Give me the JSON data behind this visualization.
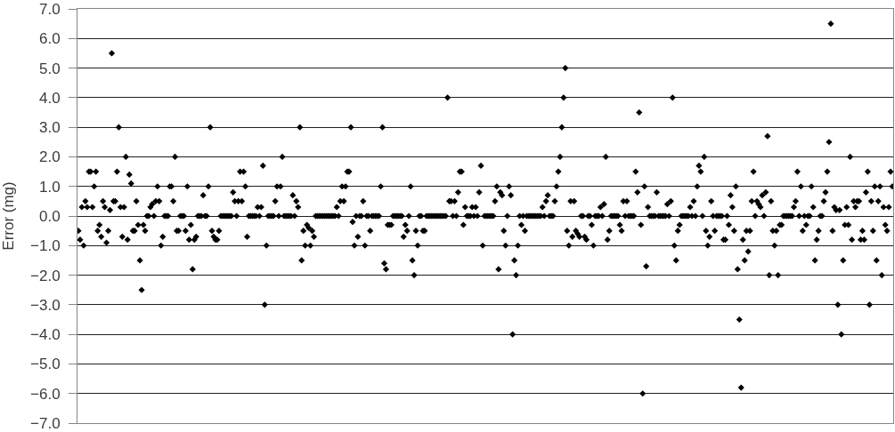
{
  "chart_data": {
    "type": "scatter",
    "ylabel": "Error (mg)",
    "color": "#000000",
    "marker": "diamond",
    "grid": "y",
    "ylim": [
      -7,
      7
    ],
    "yticks": [
      {
        "value": 7,
        "label": "7.0"
      },
      {
        "value": 6,
        "label": "6.0"
      },
      {
        "value": 5,
        "label": "5.0"
      },
      {
        "value": 4,
        "label": "4.0"
      },
      {
        "value": 3,
        "label": "3.0"
      },
      {
        "value": 2,
        "label": "2.0"
      },
      {
        "value": 1,
        "label": "1.0"
      },
      {
        "value": 0,
        "label": "0.0"
      },
      {
        "value": -1,
        "label": "−1.0"
      },
      {
        "value": -2,
        "label": "−2.0"
      },
      {
        "value": -3,
        "label": "−3.0"
      },
      {
        "value": -4,
        "label": "−4.0"
      },
      {
        "value": -5,
        "label": "−5.0"
      },
      {
        "value": -6,
        "label": "−6.0"
      },
      {
        "value": -7,
        "label": "−7.0"
      }
    ],
    "categories": [
      null,
      null,
      null,
      null,
      null,
      null,
      null,
      null,
      null,
      null,
      null,
      null,
      null,
      null,
      null,
      null,
      null,
      null,
      null,
      null,
      null,
      null,
      null,
      null,
      null,
      null,
      null,
      null,
      null,
      null,
      null,
      null,
      null,
      null,
      null,
      null,
      null,
      null,
      null,
      null,
      null,
      null,
      null,
      null,
      null,
      null,
      null,
      null,
      null,
      null,
      null,
      null,
      null,
      null,
      null,
      null,
      null,
      null,
      null,
      null,
      null,
      null,
      null,
      null,
      null,
      null,
      null,
      null,
      null,
      null,
      null,
      null,
      null,
      null,
      null,
      null,
      null,
      null,
      null,
      null,
      null,
      null,
      null,
      null,
      null,
      null,
      null,
      null,
      null,
      null,
      null,
      null,
      null,
      null,
      null,
      null,
      null,
      null,
      null,
      null,
      null,
      null,
      null,
      null,
      null,
      null,
      null,
      null,
      null,
      null,
      null,
      null,
      null,
      null,
      null,
      null,
      null,
      null,
      null,
      null,
      null,
      null,
      null,
      null,
      null,
      null,
      null,
      null,
      null,
      null,
      null,
      null,
      null,
      null,
      null,
      null,
      null,
      null,
      null,
      null,
      null,
      null,
      null,
      null,
      null,
      null,
      null,
      null,
      null,
      null,
      null,
      null,
      null,
      null,
      null,
      null,
      null,
      null,
      null,
      null,
      null,
      null,
      null,
      null,
      null,
      null,
      null,
      null,
      null,
      null,
      null,
      null,
      null,
      null,
      null,
      null,
      null,
      null,
      null,
      null,
      null,
      null,
      null,
      null,
      null,
      null,
      null,
      null,
      null,
      null,
      null,
      null,
      null,
      null,
      null,
      null,
      null,
      null,
      null,
      null,
      null,
      null,
      null,
      null,
      null,
      null,
      null,
      null,
      null,
      null,
      null,
      null,
      null,
      null,
      null,
      null,
      null,
      null,
      null,
      null,
      null,
      null,
      null,
      null,
      null,
      null,
      null,
      null,
      null,
      null,
      null,
      null,
      null,
      null,
      null,
      null,
      null,
      null,
      null,
      null,
      null,
      null,
      null,
      null,
      null,
      null,
      null,
      null,
      null,
      null,
      null,
      null,
      null,
      null,
      null,
      null,
      null,
      null,
      null,
      null,
      null,
      null,
      null,
      null,
      null,
      null,
      null,
      null,
      null,
      null,
      null,
      null,
      null,
      null,
      null,
      null,
      null,
      null,
      null,
      null,
      null,
      null,
      null,
      null,
      null,
      null,
      null,
      null,
      null,
      null,
      null,
      null,
      null,
      null,
      null,
      null,
      null,
      null,
      null,
      null,
      null,
      null,
      null,
      null,
      null,
      null,
      null,
      null,
      null,
      null,
      null,
      null,
      null,
      null,
      null,
      null,
      null,
      null,
      null,
      null,
      null,
      null,
      null,
      null,
      null,
      null,
      null,
      null,
      null,
      null,
      null,
      null,
      null,
      null,
      null,
      null,
      null,
      null,
      null,
      null,
      null,
      null,
      null,
      null,
      null,
      null,
      null,
      null,
      null,
      null,
      null,
      null,
      null,
      null,
      null,
      null,
      null,
      null,
      null,
      null,
      null,
      null,
      null,
      null,
      null,
      null,
      null,
      null,
      null,
      null,
      null,
      null,
      null,
      null,
      null,
      null,
      null,
      null,
      null,
      null,
      null,
      null,
      null,
      null,
      null,
      null,
      null,
      null,
      null,
      null,
      null,
      null,
      null,
      null,
      null,
      null,
      null,
      null,
      null,
      null,
      null,
      null,
      null,
      null,
      null,
      null,
      null,
      null,
      null,
      null,
      null,
      null,
      null,
      null,
      null,
      null,
      null,
      null,
      null,
      null,
      null,
      null,
      null,
      null,
      null,
      null,
      null,
      null,
      null,
      null,
      null,
      null,
      null,
      null,
      null,
      null,
      null,
      null,
      null,
      null,
      null,
      null,
      null,
      null,
      null,
      null,
      null,
      null,
      null,
      null,
      null,
      null,
      null,
      null,
      null,
      null,
      null,
      null,
      null,
      null,
      null,
      null,
      null,
      null
    ],
    "values": [
      -0.5,
      -0.8,
      0.3,
      -1.0,
      0.5,
      0.3,
      1.5,
      1.5,
      0.3,
      1.0,
      1.5,
      -0.5,
      -0.3,
      -0.7,
      0.5,
      0.3,
      -0.9,
      -0.5,
      0.2,
      5.5,
      0.5,
      0.5,
      1.5,
      3.0,
      0.3,
      -0.7,
      0.3,
      2.0,
      -0.8,
      1.4,
      1.1,
      -0.5,
      -0.5,
      0.5,
      -0.3,
      -1.5,
      -2.5,
      -0.3,
      -0.5,
      0,
      0,
      0.3,
      0.4,
      0,
      0.5,
      1.0,
      0.5,
      -1.0,
      -0.7,
      0,
      0,
      0,
      1.0,
      1.0,
      0.5,
      2.0,
      -0.5,
      -0.5,
      0,
      0,
      0,
      -0.5,
      1.0,
      -0.8,
      -0.3,
      -1.8,
      -0.8,
      -0.7,
      0,
      0,
      0,
      0.7,
      0,
      0,
      1.0,
      3.0,
      -0.5,
      -0.7,
      -0.8,
      -0.8,
      -0.5,
      0,
      0,
      0,
      0,
      0,
      0,
      0,
      0.8,
      0.5,
      0,
      0.5,
      1.5,
      0.5,
      1.5,
      1.0,
      -0.7,
      0,
      0,
      0,
      0,
      0,
      0.3,
      0,
      0.3,
      1.7,
      -3.0,
      -1.0,
      0,
      0,
      0,
      0,
      0.5,
      1.0,
      0,
      1.0,
      2.0,
      0,
      0,
      0,
      0,
      0,
      0.7,
      0,
      0.5,
      0.3,
      3.0,
      -1.5,
      -0.5,
      -1.0,
      -0.3,
      -0.4,
      -1.0,
      -0.5,
      -0.7,
      0,
      0,
      0,
      0,
      0,
      0,
      0,
      0,
      0,
      0,
      0,
      0,
      0.3,
      0,
      0.5,
      1.0,
      0.5,
      1.0,
      1.5,
      1.5,
      3.0,
      -0.2,
      -1.0,
      0,
      -0.7,
      0,
      0,
      0.5,
      -1.0,
      0,
      0,
      -0.5,
      0,
      0,
      0,
      0,
      0,
      1.0,
      3.0,
      -1.6,
      -1.8,
      -0.3,
      -0.3,
      -0.3,
      0,
      0,
      0,
      0,
      0,
      0,
      -0.7,
      -0.3,
      -0.5,
      0,
      1.0,
      -1.5,
      -2.0,
      -0.5,
      -1.0,
      0,
      0,
      -0.5,
      -0.5,
      0,
      0,
      0,
      0,
      0,
      0,
      0,
      0,
      0,
      0,
      0,
      0,
      4.0,
      0.5,
      0.5,
      0,
      0.5,
      0,
      0.8,
      1.5,
      1.5,
      -0.3,
      0.3,
      0,
      0,
      0,
      0.3,
      0,
      0.3,
      0,
      0.8,
      1.7,
      -1.0,
      0,
      0,
      0,
      0,
      0,
      0,
      0.5,
      1.0,
      -1.8,
      0.8,
      0.7,
      -0.5,
      -1.0,
      0,
      1.0,
      0.7,
      -4.0,
      -1.5,
      -2.0,
      -1.0,
      0,
      -0.3,
      0,
      -0.5,
      0,
      0,
      0,
      0,
      0,
      0,
      0,
      0,
      0,
      0.3,
      0,
      0.5,
      0.7,
      0,
      0,
      0,
      0.5,
      1.0,
      1.5,
      2.0,
      3.0,
      4.0,
      5.0,
      -0.5,
      -1.0,
      0.5,
      -0.7,
      0.5,
      -0.5,
      -0.6,
      -0.7,
      0,
      0,
      -0.7,
      -0.8,
      0,
      0,
      -0.3,
      -1.0,
      0,
      0,
      0,
      0.3,
      0,
      0.4,
      2.0,
      -0.8,
      -0.5,
      0,
      0,
      0,
      0,
      0,
      -0.3,
      -0.5,
      0.5,
      0,
      0.5,
      0,
      0,
      0,
      0,
      1.5,
      0.8,
      3.5,
      -0.3,
      -6.0,
      1.0,
      -1.7,
      0.3,
      0,
      0,
      0,
      0,
      0.8,
      0,
      0,
      0,
      0,
      0,
      0.4,
      0,
      0.5,
      4.0,
      -1.0,
      -1.5,
      -0.5,
      -0.3,
      0,
      0,
      0,
      0,
      0,
      0.3,
      0,
      0.5,
      0,
      1.0,
      1.7,
      1.5,
      0,
      2.0,
      -0.5,
      -1.0,
      -0.7,
      0.5,
      0,
      -0.5,
      0,
      0,
      0,
      0,
      -0.8,
      -0.8,
      0,
      -0.3,
      0.7,
      0.3,
      -0.5,
      1.0,
      -1.8,
      -3.5,
      -5.8,
      -0.8,
      -1.5,
      -0.5,
      -1.2,
      -0.5,
      0.5,
      1.5,
      0,
      0.5,
      0.4,
      0.3,
      0.7,
      0,
      0.8,
      2.7,
      -2.0,
      0.5,
      -0.5,
      -1.0,
      -0.5,
      -2.0,
      -0.3,
      -0.3,
      0,
      0,
      0,
      0,
      0,
      0,
      0.3,
      0.5,
      1.5,
      0,
      1.0,
      -0.5,
      0,
      -0.3,
      0,
      0,
      1.0,
      0.3,
      -1.5,
      -0.8,
      -0.5,
      0,
      0,
      0.5,
      0.8,
      1.5,
      2.5,
      6.5,
      -0.5,
      0.3,
      0.2,
      -3.0,
      0.2,
      -4.0,
      -1.5,
      -0.3,
      0.3,
      -0.3,
      2.0,
      -0.8,
      0.5,
      0.3,
      0.5,
      0.5,
      -0.8,
      -0.5,
      -0.8,
      0.8,
      1.5,
      -3.0,
      0.5,
      -0.5,
      1.0,
      -1.5,
      0.5,
      1.0,
      -2.0,
      0.3,
      -0.3,
      -0.5,
      0.3,
      1.5,
      1.0
    ]
  }
}
